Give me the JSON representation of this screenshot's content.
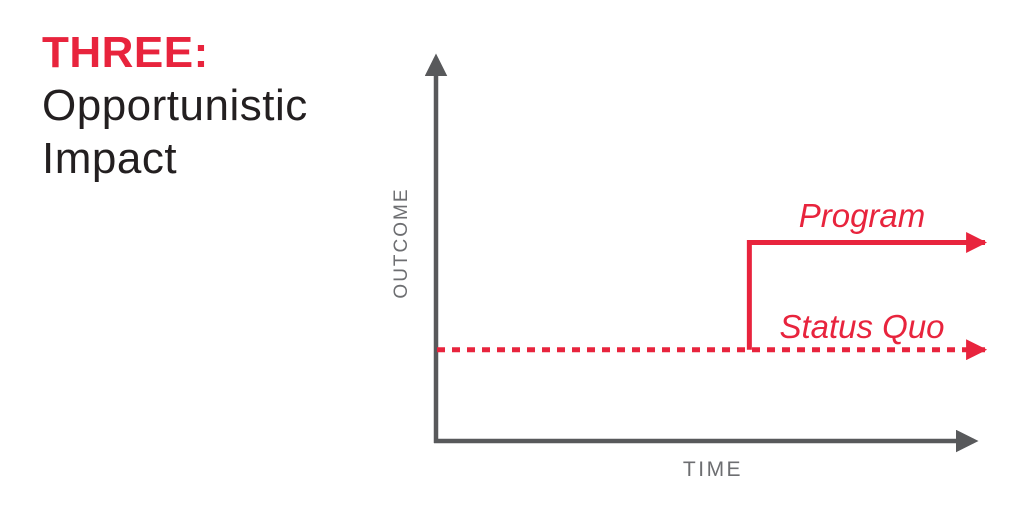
{
  "page": {
    "background": "#FFFFFF"
  },
  "title": {
    "kicker": "THREE:",
    "line1": "Opportunistic",
    "line2": "Impact"
  },
  "chart": {
    "y_axis_label": "OUTCOME",
    "x_axis_label": "TIME",
    "program_label": "Program",
    "status_quo_label": "Status Quo"
  },
  "colors": {
    "accent_red": "#E8243D",
    "axis_gray": "#58595B",
    "axis_label_gray": "#6D6E71",
    "title_black": "#231F20"
  },
  "chart_data": {
    "type": "line",
    "title": "THREE: Opportunistic Impact",
    "xlabel": "TIME",
    "ylabel": "OUTCOME",
    "x_range": [
      0,
      100
    ],
    "y_range": [
      0,
      100
    ],
    "grid": false,
    "axis_ticks": "none (conceptual diagram, axes end in arrowheads)",
    "legend_position": "inline italic labels above each line, right side",
    "series": [
      {
        "name": "Program",
        "style": "solid",
        "color": "#E8243D",
        "arrow_end": true,
        "points": [
          [
            57,
            23
          ],
          [
            57,
            50
          ],
          [
            100,
            50
          ]
        ],
        "description": "Outcome sits at status-quo level, steps up vertically at the intervention moment (~57% along time axis), then stays flat at the higher level"
      },
      {
        "name": "Status Quo",
        "style": "dashed",
        "color": "#E8243D",
        "arrow_end": true,
        "points": [
          [
            0,
            23
          ],
          [
            100,
            23
          ]
        ],
        "description": "Flat dashed baseline at low outcome level across the full time axis"
      }
    ]
  }
}
